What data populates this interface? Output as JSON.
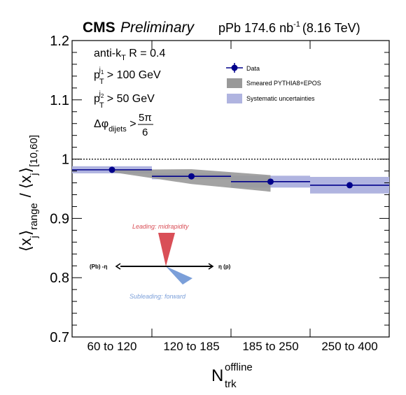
{
  "chart_data": {
    "type": "line",
    "header": {
      "experiment": "CMS",
      "status": "Preliminary",
      "dataset_prefix": "pPb 174.6 nb",
      "dataset_exp": "-1",
      "energy": "(8.16 TeV)"
    },
    "selection_text": {
      "algo_main": "anti-k",
      "algo_sub": "T",
      "algo_rest": " R = 0.4",
      "pt1_p": "p",
      "pt1_sub": "T",
      "pt1_sup": "j",
      "pt1_supsub": "1",
      "pt1_rest": " > 100 GeV",
      "pt2_p": "p",
      "pt2_sub": "T",
      "pt2_sup": "j",
      "pt2_supsub": "2",
      "pt2_rest": " > 50 GeV",
      "dphi_main": "Δφ",
      "dphi_sub": "dijets",
      "dphi_gt": " > ",
      "dphi_num": "5π",
      "dphi_den": "6"
    },
    "ylabel": {
      "x": "x",
      "j": "j",
      "range": "range",
      "ref_range": "[10,60]",
      "sep": "/"
    },
    "xlabel": {
      "main": "N",
      "sub": "trk",
      "sup": "offline"
    },
    "categories": [
      "60 to 120",
      "120 to 185",
      "185 to 250",
      "250 to 400"
    ],
    "ylim": [
      0.7,
      1.2
    ],
    "yticks": [
      "0.7",
      "0.8",
      "0.9",
      "1",
      "1.1",
      "1.2"
    ],
    "reference_line": 1.0,
    "series": [
      {
        "name": "Data",
        "values": [
          0.982,
          0.971,
          0.962,
          0.956
        ],
        "syst": [
          0.006,
          0.005,
          0.01,
          0.014
        ],
        "x_center": [
          0.5,
          0.5,
          0.5,
          0.5
        ],
        "color": "#00008b"
      },
      {
        "name": "Smeared PYTHIA8+EPOS",
        "band_low": [
          0.978,
          0.958,
          0.945
        ],
        "band_high": [
          0.982,
          0.983,
          0.973
        ],
        "color": "#999999"
      }
    ],
    "syst_label": "Systematic uncertainties",
    "syst_color": "#b0b4e0",
    "legend_position": "top-right",
    "diagram": {
      "leading_label": "Leading: midrapidity",
      "subleading_label": "Subleading: forward",
      "left_label": "(Pb) -η",
      "right_label": "η (p)",
      "leading_color": "#d94f57",
      "subleading_color": "#7b9fd9"
    },
    "grid": false
  }
}
